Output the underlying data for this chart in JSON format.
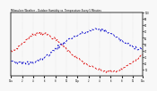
{
  "title": "Milwaukee Weather - Outdoor Humidity vs. Temperature Every 5 Minutes",
  "background_color": "#f8f8f8",
  "plot_bg_color": "#f8f8f8",
  "grid_color": "#cccccc",
  "temp_color": "#dd0000",
  "humidity_color": "#0000cc",
  "n_points": 144,
  "yticks_right": [
    10,
    20,
    30,
    40,
    50,
    60,
    70,
    80,
    90,
    100
  ],
  "ytick_labels_right": [
    "10",
    "20",
    "30",
    "40",
    "50",
    "60",
    "70",
    "80",
    "90",
    "100"
  ],
  "ylim": [
    0,
    100
  ],
  "xlim": [
    0,
    143
  ],
  "temp_keypoints_x": [
    0,
    10,
    25,
    45,
    70,
    95,
    115,
    130,
    143
  ],
  "temp_keypoints_y": [
    38,
    48,
    65,
    60,
    30,
    10,
    8,
    20,
    35
  ],
  "hum_keypoints_x": [
    0,
    15,
    35,
    60,
    80,
    100,
    120,
    135,
    143
  ],
  "hum_keypoints_y": [
    25,
    20,
    28,
    55,
    68,
    72,
    55,
    45,
    42
  ],
  "xtick_positions": [
    0,
    12,
    24,
    36,
    48,
    60,
    72,
    84,
    96,
    108,
    120,
    132,
    143
  ],
  "xtick_labels": [
    "12a",
    "2",
    "4",
    "6",
    "8",
    "10",
    "12p",
    "2",
    "4",
    "6",
    "8",
    "10",
    "12a"
  ]
}
